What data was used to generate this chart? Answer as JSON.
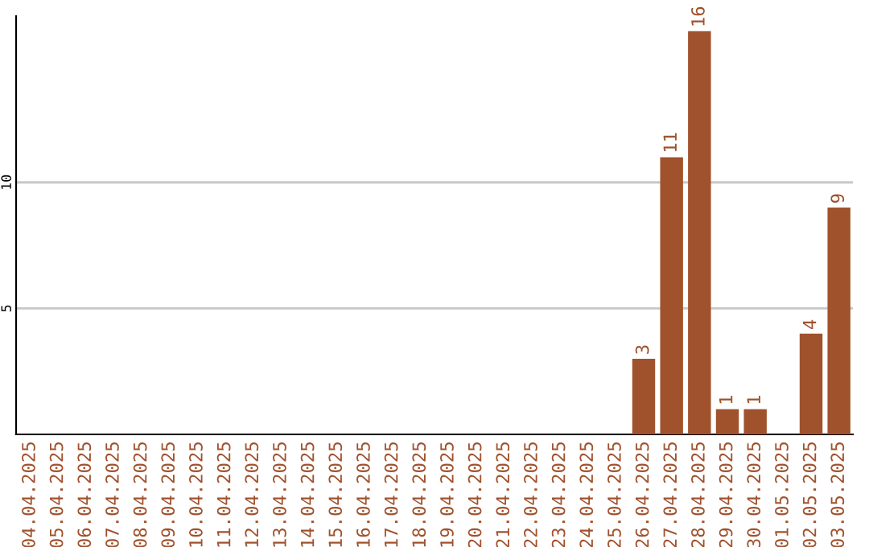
{
  "chart_data": {
    "type": "bar",
    "categories": [
      "04.04.2025",
      "05.04.2025",
      "06.04.2025",
      "07.04.2025",
      "08.04.2025",
      "09.04.2025",
      "10.04.2025",
      "11.04.2025",
      "12.04.2025",
      "13.04.2025",
      "14.04.2025",
      "15.04.2025",
      "16.04.2025",
      "17.04.2025",
      "18.04.2025",
      "19.04.2025",
      "20.04.2025",
      "21.04.2025",
      "22.04.2025",
      "23.04.2025",
      "24.04.2025",
      "25.04.2025",
      "26.04.2025",
      "27.04.2025",
      "28.04.2025",
      "29.04.2025",
      "30.04.2025",
      "01.05.2025",
      "02.05.2025",
      "03.05.2025"
    ],
    "values": [
      0,
      0,
      0,
      0,
      0,
      0,
      0,
      0,
      0,
      0,
      0,
      0,
      0,
      0,
      0,
      0,
      0,
      0,
      0,
      0,
      0,
      0,
      3,
      11,
      16,
      1,
      1,
      0,
      4,
      9
    ],
    "value_labels": [
      null,
      null,
      null,
      null,
      null,
      null,
      null,
      null,
      null,
      null,
      null,
      null,
      null,
      null,
      null,
      null,
      null,
      null,
      null,
      null,
      null,
      null,
      "3",
      "11",
      "16",
      "1",
      "1",
      null,
      "4",
      "9"
    ],
    "color": "#a0522d",
    "ylim": [
      0,
      16.6
    ],
    "yticks": [
      5,
      10
    ],
    "grid": "y",
    "legend": false
  }
}
